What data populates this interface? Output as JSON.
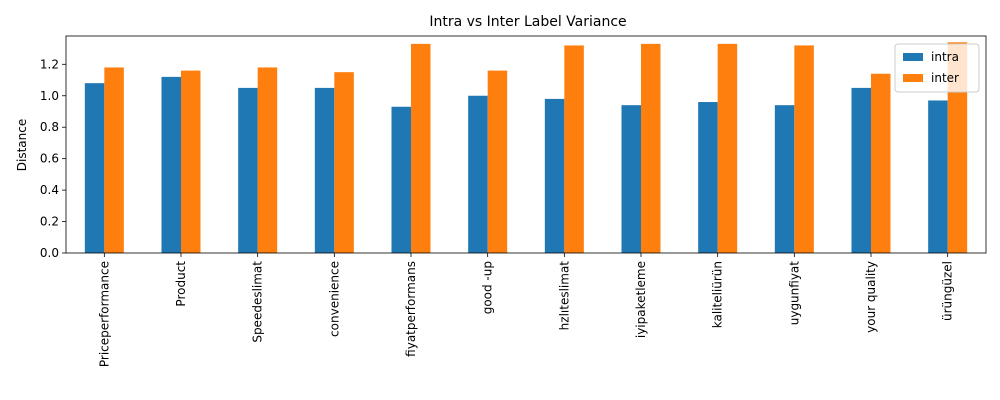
{
  "chart_data": {
    "type": "bar",
    "title": "Intra vs Inter Label Variance",
    "xlabel": "",
    "ylabel": "Distance",
    "ylim": [
      0,
      1.38
    ],
    "yticks": [
      "0.0",
      "0.2",
      "0.4",
      "0.6",
      "0.8",
      "1.0",
      "1.2"
    ],
    "grid": false,
    "legend_position": "top-right",
    "categories": [
      "Priceperformance",
      "Product",
      "Speedeslimat",
      "convenience",
      "fiyatperformans",
      "good -up",
      "hzlıteslimat",
      "iyipaketleme",
      "kaliteliürün",
      "uygunfiyat",
      "your quality",
      "ürüngüzel"
    ],
    "series": [
      {
        "name": "intra",
        "color": "#1f77b4",
        "values": [
          1.08,
          1.12,
          1.05,
          1.05,
          0.93,
          1.0,
          0.98,
          0.94,
          0.96,
          0.94,
          1.05,
          0.97
        ]
      },
      {
        "name": "inter",
        "color": "#ff7f0e",
        "values": [
          1.18,
          1.16,
          1.18,
          1.15,
          1.33,
          1.16,
          1.32,
          1.33,
          1.33,
          1.32,
          1.14,
          1.34
        ]
      }
    ]
  }
}
